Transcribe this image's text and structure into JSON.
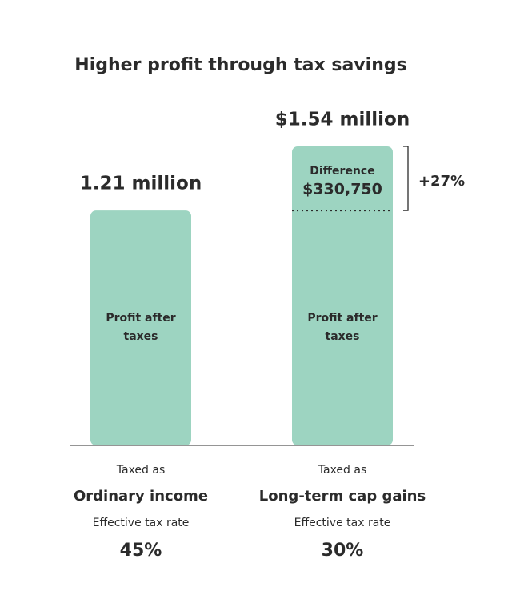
{
  "chart_data": {
    "type": "bar",
    "title": "Higher profit through tax savings",
    "categories": [
      "Ordinary income",
      "Long-term cap gains"
    ],
    "values": [
      1.21,
      1.54
    ],
    "value_labels": [
      "1.21 million",
      "$1.54 million"
    ],
    "color": "#9dd4c1",
    "segment_label": "Profit after taxes",
    "taxed_as_label": "Taxed as",
    "rate_label": "Effective tax rate",
    "tax_rates": [
      "45%",
      "30%"
    ],
    "difference": {
      "label": "Difference",
      "amount": "$330,750",
      "percent": "+27%"
    }
  }
}
